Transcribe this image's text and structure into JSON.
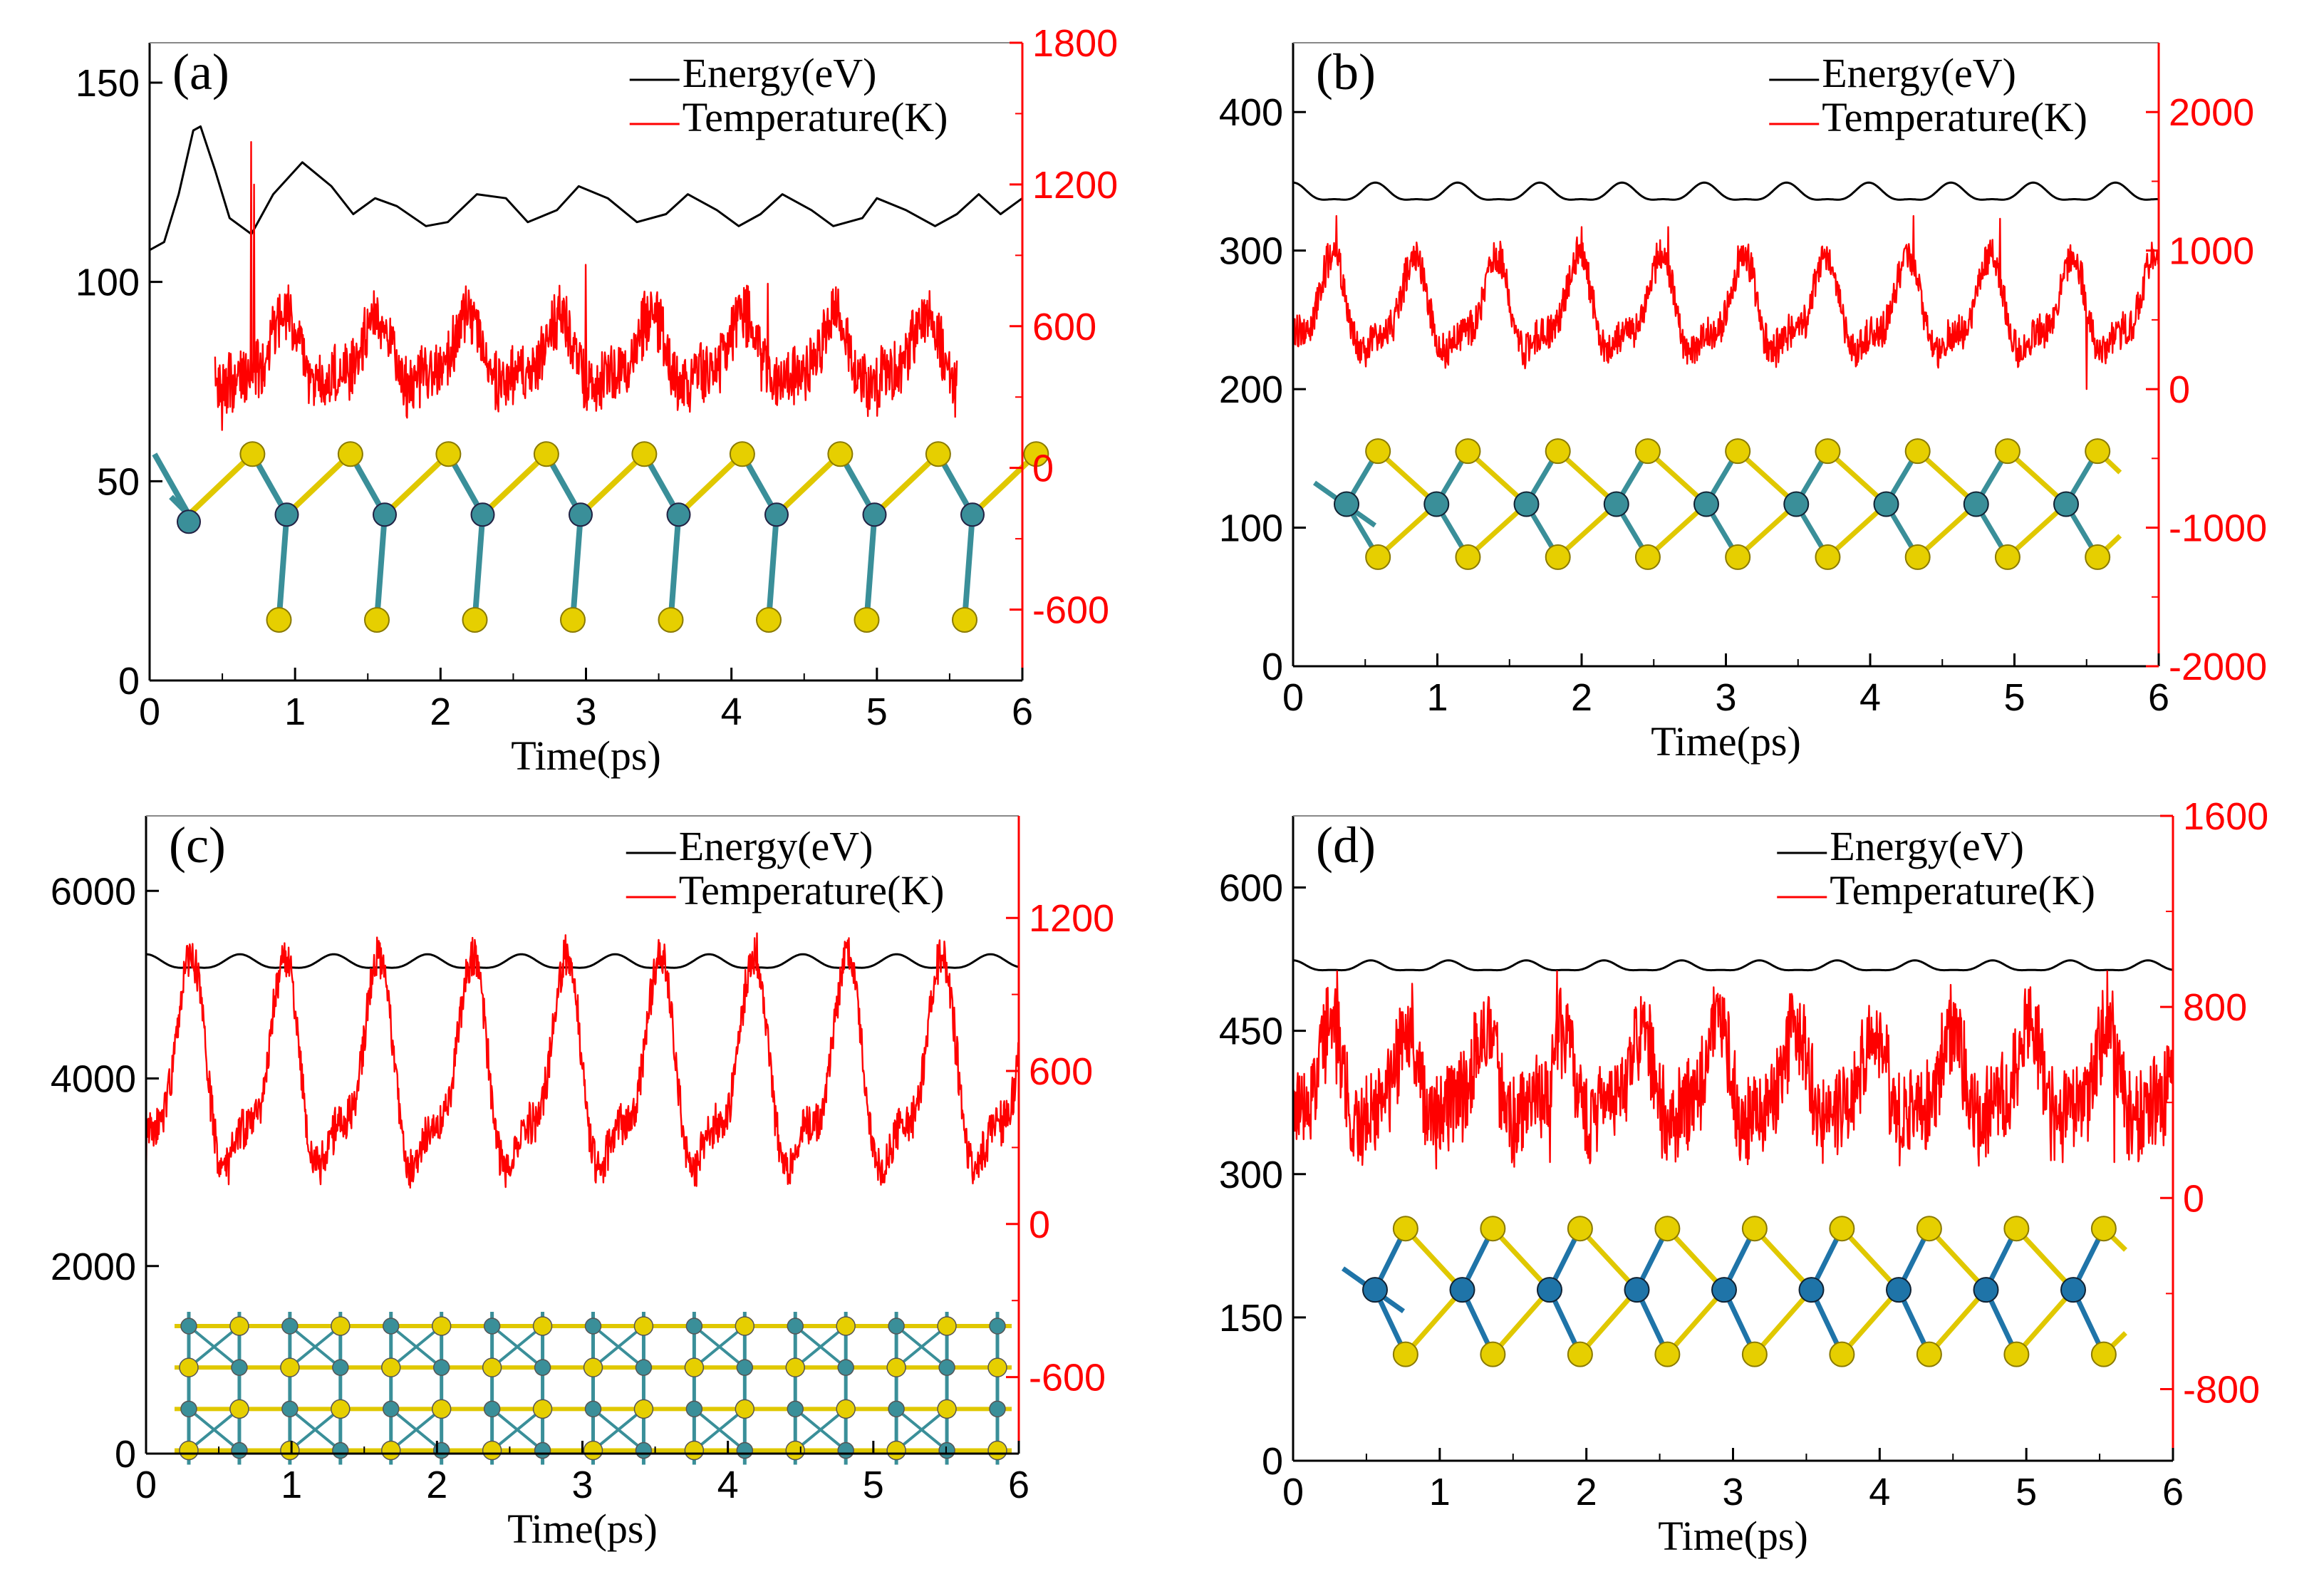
{
  "figure": {
    "colors": {
      "energy": "#000000",
      "temperature": "#ff0000",
      "atom_metal_a": "#3a8f99",
      "atom_metal_d": "#1f74a8",
      "atom_sulfur": "#e6cf00",
      "bond_yellow": "#e0c800",
      "axis": "#000000"
    }
  },
  "chart_data": [
    {
      "type": "line",
      "panel": "(a)",
      "xlabel": "Time(ps)",
      "xlim": [
        0,
        6
      ],
      "xticks": [
        0,
        1,
        2,
        3,
        4,
        5,
        6
      ],
      "left_ylim": [
        0,
        160
      ],
      "left_yticks": [
        0,
        50,
        100,
        150
      ],
      "right_ylim": [
        -900,
        1800
      ],
      "right_yticks": [
        -600,
        0,
        600,
        1200,
        1800
      ],
      "legend": [
        "Energy(eV)",
        "Temperature(K)"
      ],
      "structure": "zigzag-single",
      "series": [
        {
          "name": "Energy(eV)",
          "axis": "left",
          "points": [
            [
              0,
              108
            ],
            [
              0.1,
              110
            ],
            [
              0.2,
              122
            ],
            [
              0.3,
              138
            ],
            [
              0.35,
              139
            ],
            [
              0.45,
              128
            ],
            [
              0.55,
              116
            ],
            [
              0.7,
              112
            ],
            [
              0.85,
              122
            ],
            [
              1.05,
              130
            ],
            [
              1.25,
              124
            ],
            [
              1.4,
              117
            ],
            [
              1.55,
              121
            ],
            [
              1.7,
              119
            ],
            [
              1.9,
              114
            ],
            [
              2.05,
              115
            ],
            [
              2.25,
              122
            ],
            [
              2.45,
              121
            ],
            [
              2.6,
              115
            ],
            [
              2.8,
              118
            ],
            [
              2.95,
              124
            ],
            [
              3.15,
              121
            ],
            [
              3.35,
              115
            ],
            [
              3.55,
              117
            ],
            [
              3.7,
              122
            ],
            [
              3.9,
              118
            ],
            [
              4.05,
              114
            ],
            [
              4.2,
              117
            ],
            [
              4.35,
              122
            ],
            [
              4.55,
              118
            ],
            [
              4.7,
              114
            ],
            [
              4.9,
              116
            ],
            [
              5.0,
              121
            ],
            [
              5.2,
              118
            ],
            [
              5.4,
              114
            ],
            [
              5.55,
              117
            ],
            [
              5.7,
              122
            ],
            [
              5.85,
              117
            ],
            [
              6,
              121
            ]
          ]
        },
        {
          "name": "Temperature(K)",
          "axis": "right",
          "synthetic": {
            "t0": 0.45,
            "t1": 5.55,
            "base": 470,
            "amp": 130,
            "period": 0.63,
            "noise": 140,
            "spikes": [
              [
                0.7,
                1380
              ],
              [
                0.72,
                1200
              ],
              [
                0.5,
                160
              ],
              [
                3.0,
                860
              ],
              [
                4.25,
                780
              ],
              [
                5.0,
                220
              ]
            ]
          }
        }
      ]
    },
    {
      "type": "line",
      "panel": "(b)",
      "xlabel": "Time(ps)",
      "xlim": [
        0,
        6
      ],
      "xticks": [
        0,
        1,
        2,
        3,
        4,
        5,
        6
      ],
      "left_ylim": [
        0,
        450
      ],
      "left_yticks": [
        0,
        100,
        200,
        300,
        400
      ],
      "right_ylim": [
        -2000,
        2500
      ],
      "right_yticks": [
        -2000,
        -1000,
        0,
        1000,
        2000
      ],
      "legend": [
        "Energy(eV)",
        "Temperature(K)"
      ],
      "structure": "zigzag-double",
      "series": [
        {
          "name": "Energy(eV)",
          "axis": "left",
          "synthetic": {
            "base": 341,
            "amp": 6,
            "period": 0.57
          }
        },
        {
          "name": "Temperature(K)",
          "axis": "right",
          "synthetic": {
            "t0": 0,
            "t1": 6,
            "base": 560,
            "amp": 300,
            "period": 0.57,
            "noise": 140,
            "spikes": [
              [
                0.3,
                1250
              ],
              [
                2.0,
                1170
              ],
              [
                2.6,
                1170
              ],
              [
                4.3,
                1250
              ],
              [
                4.9,
                1230
              ],
              [
                5.5,
                0
              ]
            ]
          }
        }
      ]
    },
    {
      "type": "line",
      "panel": "(c)",
      "xlabel": "Time(ps)",
      "xlim": [
        0,
        6
      ],
      "xticks": [
        0,
        1,
        2,
        3,
        4,
        5,
        6
      ],
      "left_ylim": [
        0,
        6800
      ],
      "left_yticks": [
        0,
        2000,
        4000,
        6000
      ],
      "right_ylim": [
        -900,
        1600
      ],
      "right_yticks": [
        -600,
        0,
        600,
        1200
      ],
      "legend": [
        "Energy(eV)",
        "Temperature(K)"
      ],
      "structure": "grid",
      "series": [
        {
          "name": "Energy(eV)",
          "axis": "left",
          "synthetic": {
            "base": 5230,
            "amp": 70,
            "period": 0.645
          }
        },
        {
          "name": "Temperature(K)",
          "axis": "right",
          "synthetic": {
            "t0": 0,
            "t1": 6,
            "base": 560,
            "amp": 360,
            "period": 0.645,
            "noise": 90,
            "spikes": [
              [
                0,
                110
              ],
              [
                4.2,
                1140
              ],
              [
                2.9,
                1070
              ],
              [
                0.95,
                1030
              ]
            ]
          }
        }
      ]
    },
    {
      "type": "line",
      "panel": "(d)",
      "xlabel": "Time(ps)",
      "xlim": [
        0,
        6
      ],
      "xticks": [
        0,
        1,
        2,
        3,
        4,
        5,
        6
      ],
      "left_ylim": [
        0,
        675
      ],
      "left_yticks": [
        0,
        150,
        300,
        450,
        600
      ],
      "right_ylim": [
        -1100,
        1600
      ],
      "right_yticks": [
        -800,
        0,
        800,
        1600
      ],
      "legend": [
        "Energy(eV)",
        "Temperature(K)"
      ],
      "structure": "zigzag-double-dark",
      "series": [
        {
          "name": "Energy(eV)",
          "axis": "left",
          "synthetic": {
            "base": 517,
            "amp": 5,
            "period": 0.53
          }
        },
        {
          "name": "Temperature(K)",
          "axis": "right",
          "synthetic": {
            "t0": 0,
            "t1": 6,
            "base": 480,
            "amp": 170,
            "period": 0.53,
            "noise": 210,
            "spikes": [
              [
                0.3,
                950
              ],
              [
                1.8,
                950
              ],
              [
                5.55,
                950
              ],
              [
                1.75,
                150
              ],
              [
                5.6,
                150
              ]
            ]
          }
        }
      ]
    }
  ]
}
